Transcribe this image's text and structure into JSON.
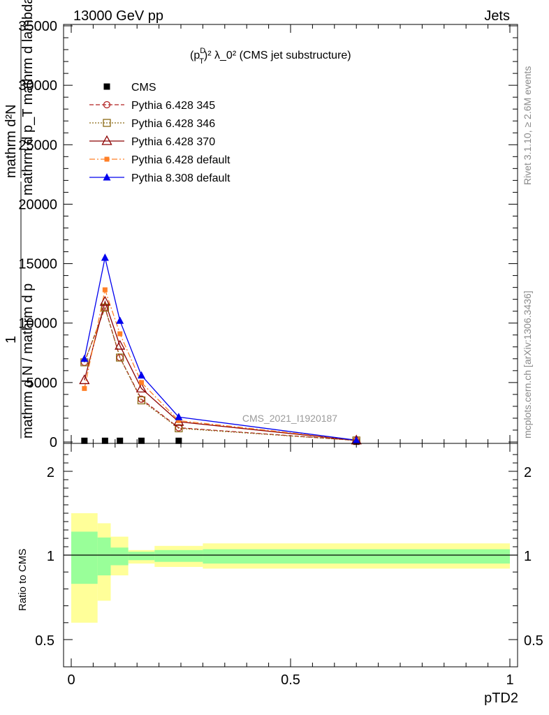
{
  "header": {
    "left": "13000 GeV pp",
    "right": "Jets"
  },
  "title_parts": {
    "open": "(p",
    "sup": "D",
    "sub": "T",
    "rest": ")² λ_0² (CMS jet substructure)"
  },
  "side_labels": {
    "rivet": "Rivet 3.1.10, ≥ 2.6M events",
    "mcplots": "mcplots.cern.ch [arXiv:1306.3436]"
  },
  "watermark": "CMS_2021_I1920187",
  "ylabel": {
    "upper_num": "mathrm d²N",
    "upper_den": "mathrm d p_T mathrm d lambda",
    "one": "1",
    "frac_num": "mathrm d N / mathrm d p",
    "frac_sub": "T",
    "frac_den": "mathrm d p_T"
  },
  "ratio_ylabel": "Ratio to CMS",
  "xlabel": "pTD2",
  "colors": {
    "cms": "#000000",
    "p345": "#b22222",
    "p346": "#8b6914",
    "p370": "#8b0000",
    "p6def": "#ff7f27",
    "p8def": "#0000ee",
    "band_inner": "#99ff99",
    "band_outer": "#ffff99"
  },
  "chart_data": {
    "type": "line",
    "x_range": [
      0,
      1
    ],
    "main_y_range": [
      0,
      35000
    ],
    "main_yticks": [
      0,
      5000,
      10000,
      15000,
      20000,
      25000,
      30000,
      35000
    ],
    "main_yticklabels": [
      "0",
      "5000",
      "10000",
      "15000",
      "20000",
      "25000",
      "30000",
      "35000"
    ],
    "ratio_y_range": [
      0.4,
      2.3
    ],
    "ratio_yticks": [
      0.5,
      1,
      2
    ],
    "ratio_yticklabels": [
      "0.5",
      "1",
      "2"
    ],
    "xticks": [
      0,
      0.5,
      1
    ],
    "xticklabels": [
      "0",
      "0.5",
      "1"
    ],
    "x": [
      0.03,
      0.077,
      0.111,
      0.16,
      0.245,
      0.65
    ],
    "series": [
      {
        "name": "CMS",
        "key": "cms",
        "marker": "square",
        "dash": "none",
        "values": [
          100,
          100,
          100,
          100,
          100,
          20
        ]
      },
      {
        "name": "Pythia 6.428 345",
        "key": "p345",
        "marker": "open-circle",
        "dash": "6,3",
        "values": [
          6700,
          11300,
          7100,
          3600,
          1200,
          130
        ]
      },
      {
        "name": "Pythia 6.428 346",
        "key": "p346",
        "marker": "open-square",
        "dash": "2,2",
        "values": [
          6700,
          11300,
          7100,
          3500,
          1150,
          130
        ]
      },
      {
        "name": "Pythia 6.428 370",
        "key": "p370",
        "marker": "open-triangle",
        "dash": "none",
        "values": [
          5200,
          11800,
          8100,
          4500,
          1700,
          130
        ]
      },
      {
        "name": "Pythia 6.428 default",
        "key": "p6def",
        "marker": "small-square",
        "dash": "8,3,2,3",
        "values": [
          4500,
          12800,
          9100,
          5000,
          1800,
          160
        ]
      },
      {
        "name": "Pythia 8.308 default",
        "key": "p8def",
        "marker": "triangle",
        "dash": "none",
        "values": [
          7000,
          15500,
          10200,
          5600,
          2100,
          150
        ]
      }
    ],
    "ratio_bands": {
      "edges": [
        0,
        0.06,
        0.09,
        0.13,
        0.19,
        0.3,
        1.0
      ],
      "inner": [
        [
          0.83,
          1.28
        ],
        [
          0.88,
          1.21
        ],
        [
          0.94,
          1.09
        ],
        [
          0.97,
          1.04
        ],
        [
          0.96,
          1.06
        ],
        [
          0.95,
          1.07
        ]
      ],
      "outer": [
        [
          0.6,
          1.5
        ],
        [
          0.73,
          1.38
        ],
        [
          0.88,
          1.22
        ],
        [
          0.95,
          1.06
        ],
        [
          0.93,
          1.11
        ],
        [
          0.92,
          1.14
        ]
      ]
    }
  }
}
